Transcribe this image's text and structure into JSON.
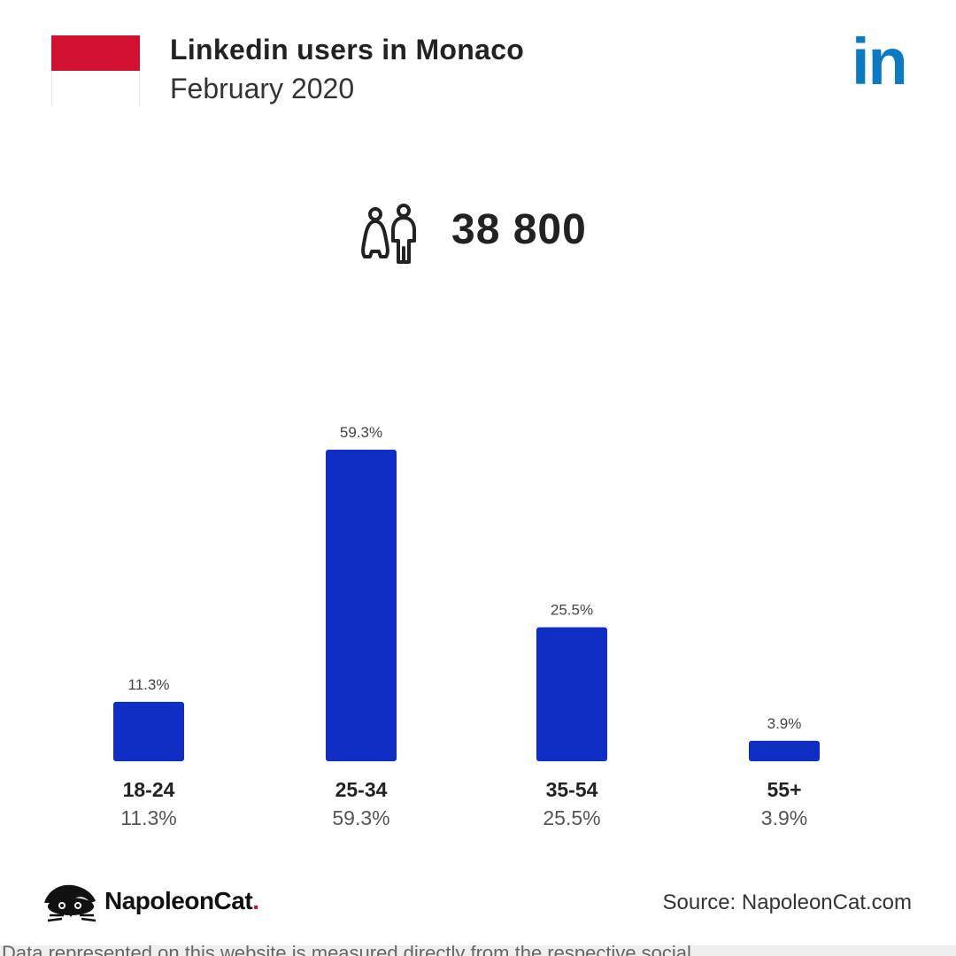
{
  "header": {
    "title": "Linkedin users in Monaco",
    "subtitle": "February 2020",
    "flag_colors": [
      "#d21030",
      "#ffffff"
    ],
    "logo_icon": "linkedin-logo-icon",
    "logo_text": "in",
    "logo_color": "#0a7bc3"
  },
  "users": {
    "icon": "users-icon",
    "count": "38 800"
  },
  "chart_data": {
    "type": "bar",
    "categories": [
      "18-24",
      "25-34",
      "35-54",
      "55+"
    ],
    "values": [
      11.3,
      59.3,
      25.5,
      3.9
    ],
    "data_labels": [
      "11.3%",
      "59.3%",
      "25.5%",
      "3.9%"
    ],
    "ylim": [
      0,
      59.3
    ],
    "bar_color": "#102ec4",
    "grid": false
  },
  "footer": {
    "brand_name": "NapoleonCat",
    "brand_dot": ".",
    "brand_icon": "napoleoncat-logo-icon",
    "source": "Source: NapoleonCat.com"
  },
  "bottom_text": "Data represented on this website is measured directly from the respective social"
}
